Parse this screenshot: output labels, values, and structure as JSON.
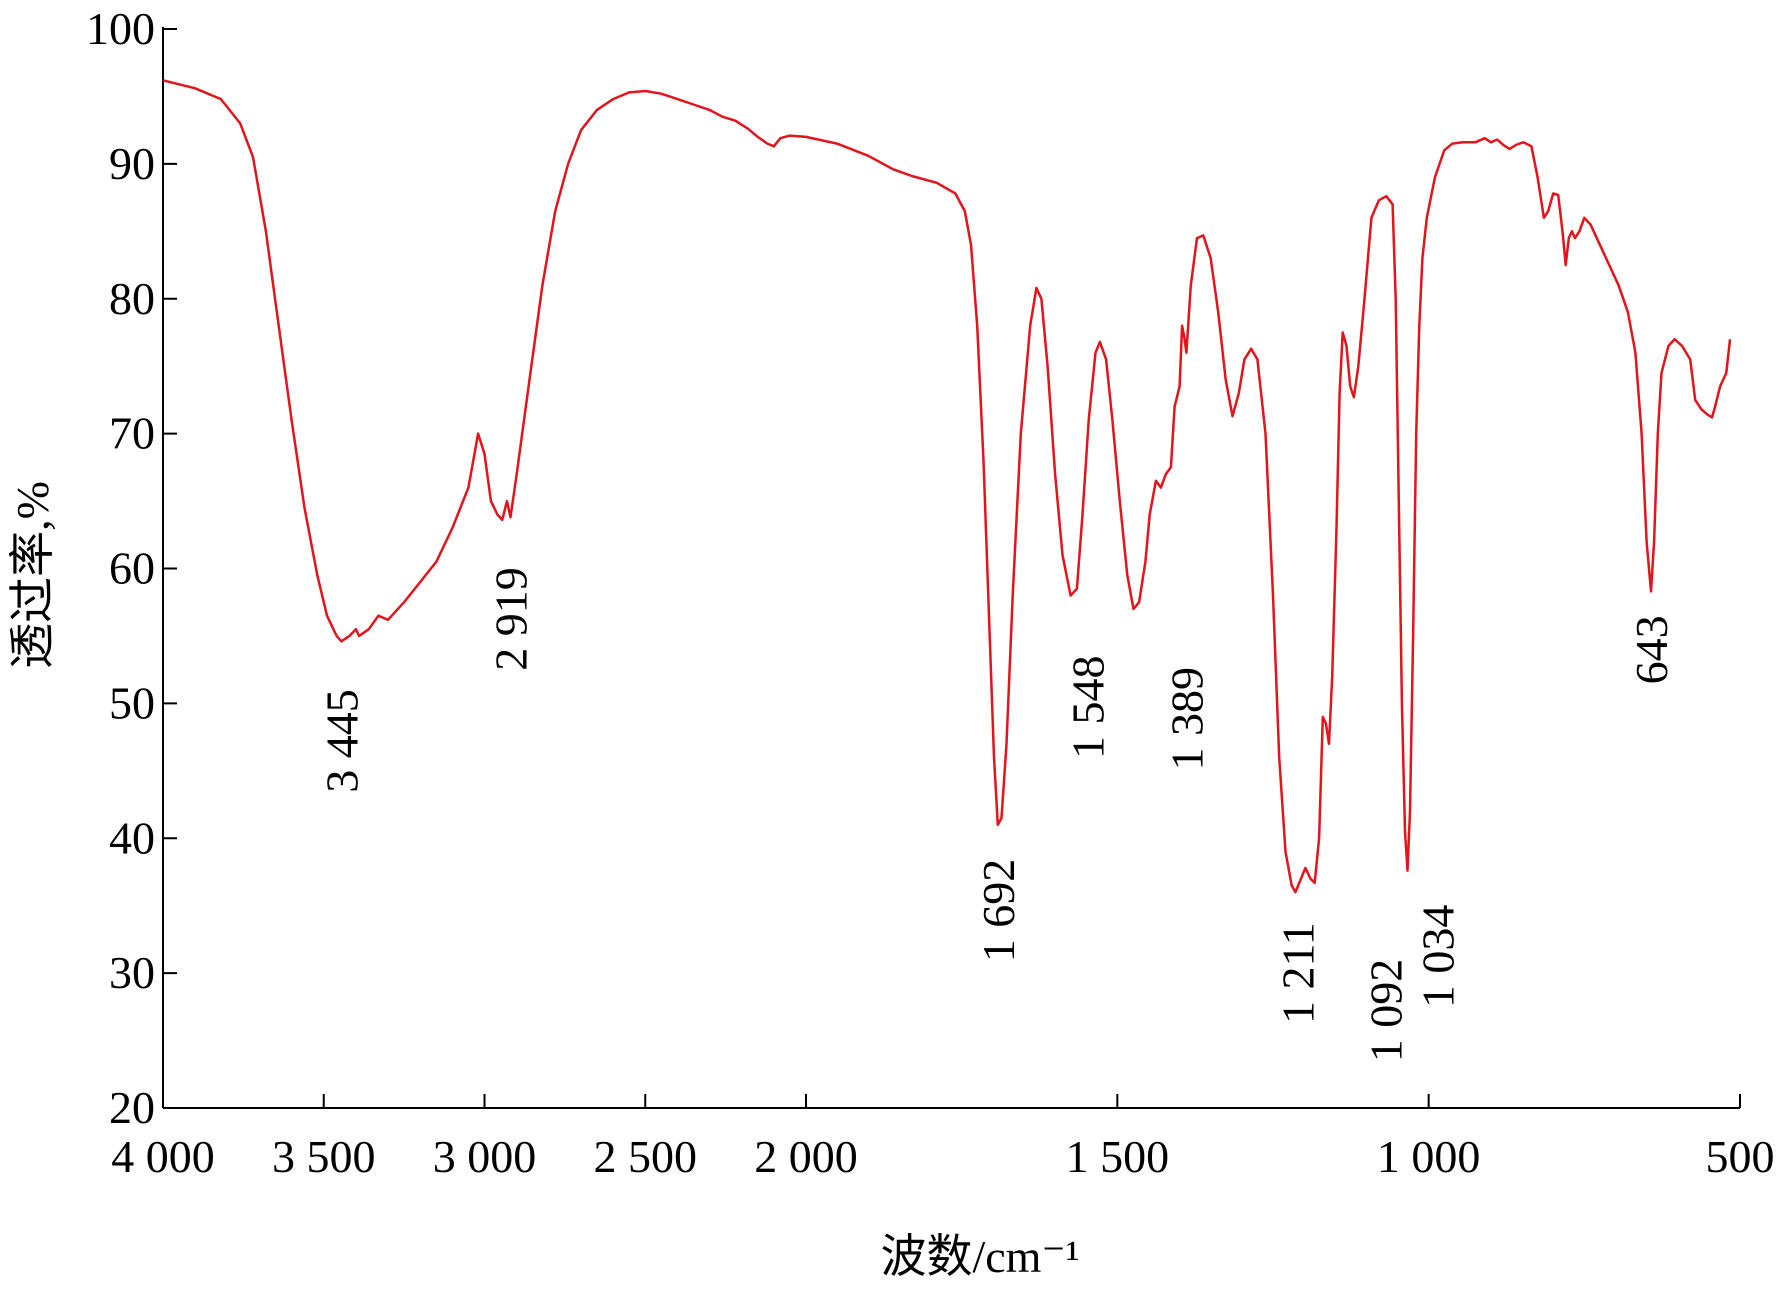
{
  "chart_data": {
    "type": "line",
    "xlabel": "波数/cm⁻¹",
    "ylabel": "透过率,%",
    "xlim": [
      4000,
      500
    ],
    "ylim": [
      20,
      100
    ],
    "x_axis_break": {
      "compressed_above": 2000,
      "note": "region 4000-2000 drawn compressed (500 cm-1 per major tick) vs. region 2000-500"
    },
    "x_ticks": [
      4000,
      3500,
      3000,
      2500,
      2000,
      1500,
      1000,
      500
    ],
    "x_tick_labels": [
      "4 000",
      "3 500",
      "3 000",
      "2 500",
      "2 000",
      "1 500",
      "1 000",
      "500"
    ],
    "y_ticks": [
      20,
      30,
      40,
      50,
      60,
      70,
      80,
      90,
      100
    ],
    "y_tick_labels": [
      "20",
      "30",
      "40",
      "50",
      "60",
      "70",
      "80",
      "90",
      "100"
    ],
    "grid": false,
    "legend": "none",
    "series": [
      {
        "color": "#e3141b",
        "points": [
          [
            4000,
            96.2
          ],
          [
            3900,
            95.6
          ],
          [
            3820,
            94.8
          ],
          [
            3760,
            93.0
          ],
          [
            3720,
            90.5
          ],
          [
            3680,
            85.0
          ],
          [
            3640,
            78.0
          ],
          [
            3600,
            71.0
          ],
          [
            3560,
            64.5
          ],
          [
            3520,
            59.5
          ],
          [
            3490,
            56.5
          ],
          [
            3460,
            55.0
          ],
          [
            3445,
            54.6
          ],
          [
            3420,
            55.0
          ],
          [
            3400,
            55.5
          ],
          [
            3390,
            55.0
          ],
          [
            3360,
            55.5
          ],
          [
            3330,
            56.5
          ],
          [
            3300,
            56.2
          ],
          [
            3250,
            57.5
          ],
          [
            3200,
            59.0
          ],
          [
            3150,
            60.5
          ],
          [
            3100,
            63.0
          ],
          [
            3050,
            66.0
          ],
          [
            3020,
            70.0
          ],
          [
            3000,
            68.5
          ],
          [
            2980,
            65.0
          ],
          [
            2960,
            64.0
          ],
          [
            2945,
            63.6
          ],
          [
            2930,
            65.0
          ],
          [
            2919,
            63.8
          ],
          [
            2900,
            67.0
          ],
          [
            2860,
            74.0
          ],
          [
            2820,
            81.0
          ],
          [
            2780,
            86.5
          ],
          [
            2740,
            90.0
          ],
          [
            2700,
            92.5
          ],
          [
            2650,
            94.0
          ],
          [
            2600,
            94.8
          ],
          [
            2550,
            95.3
          ],
          [
            2500,
            95.4
          ],
          [
            2450,
            95.2
          ],
          [
            2400,
            94.8
          ],
          [
            2350,
            94.4
          ],
          [
            2300,
            94.0
          ],
          [
            2260,
            93.5
          ],
          [
            2220,
            93.2
          ],
          [
            2180,
            92.6
          ],
          [
            2150,
            92.0
          ],
          [
            2120,
            91.5
          ],
          [
            2100,
            91.3
          ],
          [
            2080,
            91.9
          ],
          [
            2050,
            92.1
          ],
          [
            2000,
            92.0
          ],
          [
            1950,
            91.5
          ],
          [
            1900,
            90.6
          ],
          [
            1860,
            89.6
          ],
          [
            1830,
            89.1
          ],
          [
            1790,
            88.6
          ],
          [
            1760,
            87.8
          ],
          [
            1745,
            86.5
          ],
          [
            1735,
            84.0
          ],
          [
            1725,
            78.0
          ],
          [
            1715,
            68.0
          ],
          [
            1705,
            55.0
          ],
          [
            1698,
            46.0
          ],
          [
            1692,
            41.0
          ],
          [
            1686,
            41.5
          ],
          [
            1678,
            47.0
          ],
          [
            1668,
            58.0
          ],
          [
            1655,
            70.0
          ],
          [
            1640,
            78.0
          ],
          [
            1630,
            80.8
          ],
          [
            1622,
            80.0
          ],
          [
            1612,
            75.0
          ],
          [
            1600,
            67.0
          ],
          [
            1588,
            61.0
          ],
          [
            1575,
            58.0
          ],
          [
            1565,
            58.5
          ],
          [
            1556,
            64.0
          ],
          [
            1546,
            71.0
          ],
          [
            1535,
            76.0
          ],
          [
            1528,
            76.8
          ],
          [
            1518,
            75.5
          ],
          [
            1508,
            71.0
          ],
          [
            1496,
            65.0
          ],
          [
            1484,
            59.5
          ],
          [
            1474,
            57.0
          ],
          [
            1465,
            57.5
          ],
          [
            1455,
            60.5
          ],
          [
            1448,
            64.0
          ],
          [
            1438,
            66.5
          ],
          [
            1430,
            66.0
          ],
          [
            1422,
            67.0
          ],
          [
            1414,
            67.5
          ],
          [
            1408,
            72.0
          ],
          [
            1400,
            73.5
          ],
          [
            1396,
            78.0
          ],
          [
            1392,
            77.0
          ],
          [
            1389,
            76.0
          ],
          [
            1382,
            81.0
          ],
          [
            1372,
            84.5
          ],
          [
            1362,
            84.7
          ],
          [
            1350,
            83.0
          ],
          [
            1338,
            79.0
          ],
          [
            1326,
            74.0
          ],
          [
            1315,
            71.3
          ],
          [
            1305,
            73.0
          ],
          [
            1296,
            75.5
          ],
          [
            1285,
            76.3
          ],
          [
            1275,
            75.5
          ],
          [
            1262,
            70.0
          ],
          [
            1250,
            58.0
          ],
          [
            1240,
            46.0
          ],
          [
            1230,
            39.0
          ],
          [
            1220,
            36.5
          ],
          [
            1214,
            36.0
          ],
          [
            1205,
            37.0
          ],
          [
            1198,
            37.8
          ],
          [
            1190,
            37.0
          ],
          [
            1183,
            36.7
          ],
          [
            1176,
            40.0
          ],
          [
            1170,
            49.0
          ],
          [
            1165,
            48.5
          ],
          [
            1160,
            47.0
          ],
          [
            1155,
            52.0
          ],
          [
            1148,
            63.0
          ],
          [
            1143,
            73.0
          ],
          [
            1138,
            77.5
          ],
          [
            1132,
            76.5
          ],
          [
            1126,
            73.5
          ],
          [
            1120,
            72.7
          ],
          [
            1113,
            75.0
          ],
          [
            1103,
            80.0
          ],
          [
            1092,
            86.0
          ],
          [
            1080,
            87.3
          ],
          [
            1068,
            87.6
          ],
          [
            1058,
            87.0
          ],
          [
            1053,
            80.0
          ],
          [
            1048,
            65.0
          ],
          [
            1043,
            50.0
          ],
          [
            1038,
            40.5
          ],
          [
            1034,
            37.6
          ],
          [
            1030,
            42.0
          ],
          [
            1025,
            55.0
          ],
          [
            1020,
            70.0
          ],
          [
            1015,
            78.0
          ],
          [
            1010,
            83.0
          ],
          [
            1003,
            86.0
          ],
          [
            990,
            89.0
          ],
          [
            975,
            91.0
          ],
          [
            962,
            91.5
          ],
          [
            945,
            91.6
          ],
          [
            925,
            91.6
          ],
          [
            910,
            91.9
          ],
          [
            900,
            91.6
          ],
          [
            890,
            91.8
          ],
          [
            880,
            91.4
          ],
          [
            870,
            91.1
          ],
          [
            860,
            91.4
          ],
          [
            848,
            91.6
          ],
          [
            835,
            91.3
          ],
          [
            825,
            89.0
          ],
          [
            815,
            86.0
          ],
          [
            808,
            86.5
          ],
          [
            800,
            87.8
          ],
          [
            792,
            87.7
          ],
          [
            785,
            85.0
          ],
          [
            780,
            82.5
          ],
          [
            775,
            84.5
          ],
          [
            770,
            85.0
          ],
          [
            765,
            84.5
          ],
          [
            758,
            85.0
          ],
          [
            750,
            86.0
          ],
          [
            740,
            85.5
          ],
          [
            725,
            84.0
          ],
          [
            710,
            82.5
          ],
          [
            695,
            81.0
          ],
          [
            680,
            79.0
          ],
          [
            668,
            76.0
          ],
          [
            658,
            70.0
          ],
          [
            650,
            62.0
          ],
          [
            643,
            58.3
          ],
          [
            638,
            62.0
          ],
          [
            632,
            70.0
          ],
          [
            626,
            74.5
          ],
          [
            615,
            76.5
          ],
          [
            605,
            77.0
          ],
          [
            593,
            76.5
          ],
          [
            580,
            75.5
          ],
          [
            572,
            72.5
          ],
          [
            562,
            71.8
          ],
          [
            552,
            71.4
          ],
          [
            545,
            71.2
          ],
          [
            540,
            72.0
          ],
          [
            532,
            73.5
          ],
          [
            522,
            74.5
          ],
          [
            516,
            77.0
          ]
        ]
      }
    ],
    "annotations": [
      {
        "text": "3 445",
        "x": 3445,
        "y": 54.6
      },
      {
        "text": "2 919",
        "x": 2919,
        "y": 63.8
      },
      {
        "text": "1 692",
        "x": 1692,
        "y": 41.0
      },
      {
        "text": "1 548",
        "x": 1548,
        "y": 58.0
      },
      {
        "text": "1 389",
        "x": 1389,
        "y": 57.0
      },
      {
        "text": "1 211",
        "x": 1211,
        "y": 36.0
      },
      {
        "text": "1 092",
        "x": 1092,
        "y": 36.7
      },
      {
        "text": "1 034",
        "x": 1034,
        "y": 37.6
      },
      {
        "text": "643",
        "x": 643,
        "y": 58.3
      }
    ]
  }
}
